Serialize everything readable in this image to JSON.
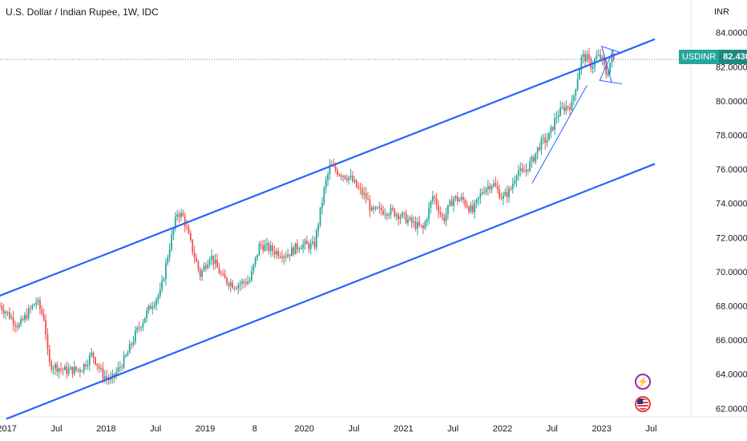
{
  "header": {
    "title": "U.S. Dollar / Indian Rupee, 1W, IDC",
    "unit": "INR"
  },
  "price_tag": {
    "symbol": "USDINR",
    "value": "82.4300"
  },
  "icons": {
    "badge_1": "lightning-icon",
    "badge_2": "us-flag-icon"
  },
  "colors": {
    "up": "#26a69a",
    "down": "#ef5350",
    "channel": "#2962ff",
    "trendline": "#2962ff",
    "price_line": "#26a69a"
  },
  "chart_data": {
    "type": "candlestick",
    "title": "U.S. Dollar / Indian Rupee, 1W, IDC",
    "xlabel": "",
    "ylabel": "INR",
    "ylim": [
      61.5,
      84.5
    ],
    "xlim": [
      2016.93,
      2023.9
    ],
    "y_ticks": [
      "84.0000",
      "82.0000",
      "80.0000",
      "78.0000",
      "76.0000",
      "74.0000",
      "72.0000",
      "70.0000",
      "68.0000",
      "66.0000",
      "64.0000",
      "62.0000"
    ],
    "x_ticks": [
      {
        "t": 2017.0,
        "label": "2017"
      },
      {
        "t": 2017.5,
        "label": "Jul"
      },
      {
        "t": 2018.0,
        "label": "2018"
      },
      {
        "t": 2018.5,
        "label": "Jul"
      },
      {
        "t": 2019.0,
        "label": "2019"
      },
      {
        "t": 2019.5,
        "label": "8"
      },
      {
        "t": 2020.0,
        "label": "2020"
      },
      {
        "t": 2020.5,
        "label": "Jul"
      },
      {
        "t": 2021.0,
        "label": "2021"
      },
      {
        "t": 2021.5,
        "label": "Jul"
      },
      {
        "t": 2022.0,
        "label": "2022"
      },
      {
        "t": 2022.5,
        "label": "Jul"
      },
      {
        "t": 2023.0,
        "label": "2023"
      },
      {
        "t": 2023.5,
        "label": "Jul"
      }
    ],
    "price_anchors": [
      [
        2016.93,
        68.0
      ],
      [
        2017.0,
        67.6
      ],
      [
        2017.12,
        66.8
      ],
      [
        2017.2,
        67.5
      ],
      [
        2017.3,
        68.3
      ],
      [
        2017.38,
        67.2
      ],
      [
        2017.42,
        64.6
      ],
      [
        2017.6,
        64.2
      ],
      [
        2017.75,
        64.3
      ],
      [
        2017.86,
        65.2
      ],
      [
        2017.96,
        64.0
      ],
      [
        2018.05,
        63.6
      ],
      [
        2018.2,
        65.0
      ],
      [
        2018.3,
        66.4
      ],
      [
        2018.45,
        68.0
      ],
      [
        2018.55,
        68.8
      ],
      [
        2018.63,
        71.2
      ],
      [
        2018.72,
        73.5
      ],
      [
        2018.78,
        73.2
      ],
      [
        2018.86,
        71.5
      ],
      [
        2018.95,
        69.8
      ],
      [
        2019.05,
        71.0
      ],
      [
        2019.18,
        69.6
      ],
      [
        2019.3,
        69.2
      ],
      [
        2019.45,
        69.5
      ],
      [
        2019.55,
        71.6
      ],
      [
        2019.7,
        71.2
      ],
      [
        2019.82,
        71.0
      ],
      [
        2019.96,
        71.6
      ],
      [
        2020.1,
        71.5
      ],
      [
        2020.2,
        74.8
      ],
      [
        2020.26,
        76.2
      ],
      [
        2020.35,
        75.8
      ],
      [
        2020.46,
        75.5
      ],
      [
        2020.55,
        74.8
      ],
      [
        2020.63,
        74.3
      ],
      [
        2020.68,
        73.5
      ],
      [
        2020.78,
        73.6
      ],
      [
        2020.9,
        73.5
      ],
      [
        2021.0,
        73.2
      ],
      [
        2021.1,
        72.8
      ],
      [
        2021.2,
        72.5
      ],
      [
        2021.3,
        74.5
      ],
      [
        2021.4,
        73.0
      ],
      [
        2021.5,
        74.3
      ],
      [
        2021.6,
        74.2
      ],
      [
        2021.7,
        73.5
      ],
      [
        2021.8,
        74.8
      ],
      [
        2021.9,
        75.2
      ],
      [
        2022.0,
        74.3
      ],
      [
        2022.08,
        74.8
      ],
      [
        2022.15,
        76.0
      ],
      [
        2022.2,
        75.7
      ],
      [
        2022.3,
        76.5
      ],
      [
        2022.38,
        77.5
      ],
      [
        2022.46,
        77.8
      ],
      [
        2022.55,
        79.2
      ],
      [
        2022.62,
        79.6
      ],
      [
        2022.7,
        79.8
      ],
      [
        2022.76,
        81.5
      ],
      [
        2022.8,
        82.6
      ],
      [
        2022.85,
        82.5
      ],
      [
        2022.9,
        82.0
      ],
      [
        2022.95,
        82.6
      ],
      [
        2023.0,
        82.5
      ],
      [
        2023.05,
        81.5
      ],
      [
        2023.1,
        82.6
      ],
      [
        2023.14,
        82.43
      ]
    ],
    "series": [
      {
        "name": "Upper channel line",
        "kind": "line",
        "points": [
          [
            2016.93,
            68.6
          ],
          [
            2023.53,
            83.6
          ]
        ]
      },
      {
        "name": "Lower channel line",
        "kind": "line",
        "points": [
          [
            2017.0,
            61.4
          ],
          [
            2023.53,
            76.3
          ]
        ]
      },
      {
        "name": "Trendline",
        "kind": "line",
        "points": [
          [
            2022.3,
            75.2
          ],
          [
            2022.85,
            80.9
          ]
        ]
      },
      {
        "name": "Pattern upper",
        "kind": "line",
        "points": [
          [
            2023.0,
            83.2
          ],
          [
            2023.2,
            82.8
          ]
        ]
      },
      {
        "name": "Pattern lower",
        "kind": "line",
        "points": [
          [
            2022.98,
            81.2
          ],
          [
            2023.2,
            81.0
          ]
        ]
      },
      {
        "name": "Pattern diagonal 1",
        "kind": "line",
        "points": [
          [
            2023.0,
            83.2
          ],
          [
            2023.1,
            81.1
          ]
        ]
      },
      {
        "name": "Pattern diagonal 2",
        "kind": "line",
        "points": [
          [
            2022.98,
            81.2
          ],
          [
            2023.12,
            83.0
          ]
        ]
      }
    ],
    "last_price": 82.43,
    "grid": false,
    "legend": "none"
  }
}
